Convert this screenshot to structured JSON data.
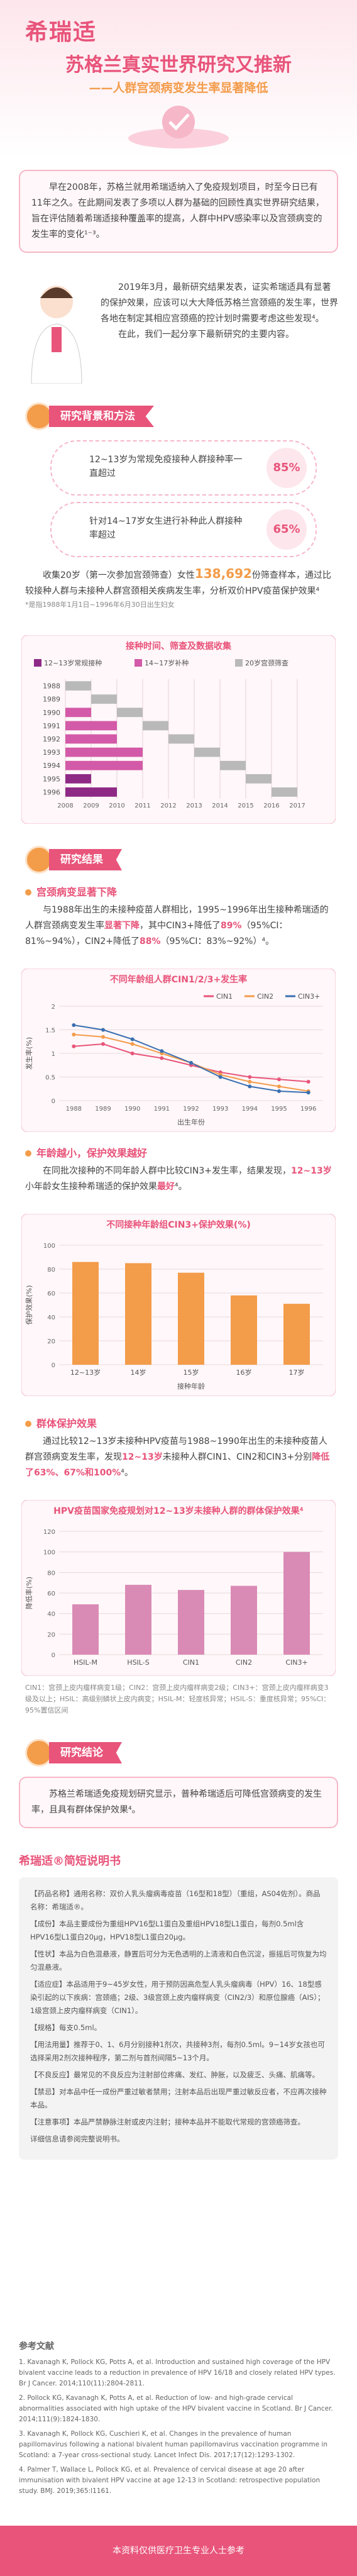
{
  "header": {
    "logo": "希瑞适",
    "title": "苏格兰真实世界研究又推新",
    "subtitle": "——人群宫颈病变发生率显著降低"
  },
  "intro": {
    "paragraph": "早在2008年，苏格兰就用希瑞适纳入了免疫规划项目，时至今日已有11年之久。在此期间发表了多项以人群为基础的回顾性真实世界研究结果，旨在评估随着希瑞适接种覆盖率的提高，人群中HPV感染率以及宫颈病变的发生率的变化¹⁻³。"
  },
  "update": {
    "paragraphs": [
      "2019年3月，最新研究结果发表，证实希瑞适具有显著的保护效果，应该可以大大降低苏格兰宫颈癌的发生率，世界各地在制定其相应宫颈癌的控计划时需要考虑这些发现⁴。",
      "在此，我们一起分享下最新研究的主要内容。"
    ]
  },
  "background": {
    "heading": "研究背景和方法",
    "bubbles": [
      {
        "text": "12~13岁为常规免疫接种人群接种率一直超过",
        "value": "85%"
      },
      {
        "text": "针对14~17岁女生进行补种此人群接种率超过",
        "value": "65%"
      }
    ],
    "paragraph": [
      "收集20岁（第一次参加宫颈筛查）女性",
      "138,692",
      "份筛查样本，通过比较接种人群与未接种人群宫颈相关疾病发生率，分析双价HPV疫苗保护效果⁴"
    ],
    "note": "*是指1988年1月1日~1996年6月30日出生妇女"
  },
  "results": {
    "heading": "研究结果",
    "subsections": [
      {
        "heading": "宫颈病变显著下降",
        "paragraph": [
          "与1988年出生的未接种疫苗人群相比，1995~1996年出生接种希瑞适的人群宫颈病变发生率",
          "显著下降",
          "，其中CIN3+降低了",
          "89%",
          "（95%CI：81%~94%），CIN2+降低了",
          "88%",
          "（95%CI：83%~92%）⁴。"
        ]
      },
      {
        "heading": "年龄越小，保护效果越好",
        "paragraph": [
          "在同批次接种的不同年龄人群中比较CIN3+发生率，结果发现，",
          "12~13岁",
          "小年龄女生接种希瑞适的保护效果",
          "最好",
          "⁴。"
        ]
      },
      {
        "heading": "群体保护效果",
        "paragraph": [
          "通过比较12~13岁未接种HPV疫苗与1988~1990年出生的未接种疫苗人群宫颈病变发生率，发现",
          "12~13岁",
          "未接种人群CIN1、CIN2和CIN3+分别",
          "降低了63%、67%和100%",
          "⁴。"
        ]
      }
    ],
    "footnote": "CIN1：宫颈上皮内瘤样病变1级；CIN2：宫颈上皮内瘤样病变2级；CIN3+：宫颈上皮内瘤样病变3级及以上；HSIL：高级别鳞状上皮内病变；HSIL-M：轻度核异常；HSIL-S：重度核异常；95%CI：95%置信区间"
  },
  "conclusion": {
    "heading": "研究结论",
    "paragraph": "苏格兰希瑞适免疫规划研究显示，普种希瑞适后可降低宫颈病变的发生率，且具有群体保护效果⁴。"
  },
  "leaflet": {
    "title": "希瑞适®简短说明书",
    "paragraphs": [
      "【药品名称】通用名称：双价人乳头瘤病毒疫苗（16型和18型）（重组，AS04佐剂）。商品名称：希瑞适®。",
      "【成份】本品主要成份为重组HPV16型L1蛋白及重组HPV18型L1蛋白，每剂0.5ml含HPV16型L1蛋白20μg，HPV18型L1蛋白20μg。",
      "【性状】本品为白色混悬液，静置后可分为无色透明的上清液和白色沉淀，振摇后可恢复为均匀混悬液。",
      "【适应症】本品适用于9~45岁女性，用于预防因高危型人乳头瘤病毒（HPV）16、18型感染引起的以下疾病：宫颈癌；2级、3级宫颈上皮内瘤样病变（CIN2/3）和原位腺癌（AIS）；1级宫颈上皮内瘤样病变（CIN1）。",
      "【规格】每支0.5ml。",
      "【用法用量】推荐于0、1、6月分别接种1剂次，共接种3剂，每剂0.5ml。9~14岁女孩也可选择采用2剂次接种程序，第二剂与首剂间隔5~13个月。",
      "【不良反应】最常见的不良反应为注射部位疼痛、发红、肿胀，以及疲乏、头痛、肌痛等。",
      "【禁忌】对本品中任一成份严重过敏者禁用；注射本品后出现严重过敏反应者，不应再次接种本品。",
      "【注意事项】本品严禁静脉注射或皮内注射；接种本品并不能取代常规的宫颈癌筛查。",
      "详细信息请参阅完整说明书。"
    ]
  },
  "references": {
    "title": "参考文献",
    "items": [
      "1. Kavanagh K, Pollock KG, Potts A, et al. Introduction and sustained high coverage of the HPV bivalent vaccine leads to a reduction in prevalence of HPV 16/18 and closely related HPV types. Br J Cancer. 2014;110(11):2804-2811.",
      "2. Pollock KG, Kavanagh K, Potts A, et al. Reduction of low- and high-grade cervical abnormalities associated with high uptake of the HPV bivalent vaccine in Scotland. Br J Cancer. 2014;111(9):1824-1830.",
      "3. Kavanagh K, Pollock KG, Cuschieri K, et al. Changes in the prevalence of human papillomavirus following a national bivalent human papillomavirus vaccination programme in Scotland: a 7-year cross-sectional study. Lancet Infect Dis. 2017;17(12):1293-1302.",
      "4. Palmer T, Wallace L, Pollock KG, et al. Prevalence of cervical disease at age 20 after immunisation with bivalent HPV vaccine at age 12-13 in Scotland: retrospective population study. BMJ. 2019;365:l1161."
    ]
  },
  "footer": {
    "text": "本资料仅供医疗卫生专业人士参考"
  },
  "chart_data": [
    {
      "type": "timeline",
      "title": "接种时间、筛查及数据收集",
      "categories": [
        "1988",
        "1989",
        "1990",
        "1991",
        "1992",
        "1993",
        "1994",
        "1995",
        "1996"
      ],
      "xlim": [
        2008,
        2018
      ],
      "xticks": [
        2008,
        2009,
        2010,
        2011,
        2012,
        2013,
        2014,
        2015,
        2016,
        2017
      ],
      "series": [
        {
          "name": "12~13岁常规接种",
          "color": "#8e2a86",
          "start": [
            null,
            null,
            null,
            null,
            null,
            null,
            null,
            2008,
            2008
          ],
          "end": [
            null,
            null,
            null,
            null,
            null,
            null,
            null,
            2009,
            2010
          ]
        },
        {
          "name": "14~17岁补种",
          "color": "#d35aa8",
          "start": [
            null,
            null,
            2008,
            2008,
            2008,
            2008,
            2008,
            null,
            null
          ],
          "end": [
            null,
            null,
            2009,
            2010,
            2010,
            2011,
            2011,
            null,
            null
          ]
        },
        {
          "name": "20岁宫颈筛查",
          "color": "#b9b9b9",
          "start": [
            2008,
            2009,
            2010,
            2011,
            2012,
            2013,
            2014,
            2015,
            2016
          ],
          "end": [
            2009,
            2010,
            2011,
            2012,
            2013,
            2014,
            2015,
            2016,
            2017
          ]
        }
      ]
    },
    {
      "type": "line",
      "title": "不同年龄组人群CIN1/2/3+发生率",
      "xlabel": "出生年份",
      "ylabel": "发生率(%)",
      "categories": [
        "1988",
        "1989",
        "1990",
        "1991",
        "1992",
        "1993",
        "1994",
        "1995",
        "1996"
      ],
      "ylim": [
        0,
        2
      ],
      "yticks": [
        0,
        0.5,
        1,
        1.5,
        2
      ],
      "grid": true,
      "legend": "top-right",
      "series": [
        {
          "name": "CIN1",
          "color": "#e8547a",
          "values": [
            1.15,
            1.2,
            1.0,
            0.9,
            0.75,
            0.6,
            0.5,
            0.45,
            0.4
          ]
        },
        {
          "name": "CIN2",
          "color": "#f39c4a",
          "values": [
            1.4,
            1.35,
            1.2,
            1.0,
            0.8,
            0.55,
            0.4,
            0.3,
            0.2
          ]
        },
        {
          "name": "CIN3+",
          "color": "#3a6fb0",
          "values": [
            1.6,
            1.5,
            1.3,
            1.05,
            0.8,
            0.5,
            0.3,
            0.2,
            0.17
          ]
        }
      ]
    },
    {
      "type": "bar",
      "title": "不同接种年龄组CIN3+保护效果(%)",
      "xlabel": "接种年龄",
      "ylabel": "保护效果(%)",
      "categories": [
        "12~13岁",
        "14岁",
        "15岁",
        "16岁",
        "17岁"
      ],
      "values": [
        86,
        85,
        77,
        58,
        51
      ],
      "color": "#f39c4a",
      "ylim": [
        0,
        100
      ],
      "yticks": [
        0,
        20,
        40,
        60,
        80,
        100
      ],
      "grid": true
    },
    {
      "type": "bar",
      "title": "HPV疫苗国家免疫规划对12~13岁未接种人群的群体保护效果⁴",
      "ylabel": "降低率(%)",
      "categories": [
        "HSIL-M",
        "HSIL-S",
        "CIN1",
        "CIN2",
        "CIN3+"
      ],
      "values": [
        49,
        68,
        63,
        67,
        100
      ],
      "color": "#d98bb5",
      "ylim": [
        0,
        120
      ],
      "yticks": [
        0,
        20,
        40,
        60,
        80,
        100,
        120
      ],
      "grid": true
    }
  ]
}
